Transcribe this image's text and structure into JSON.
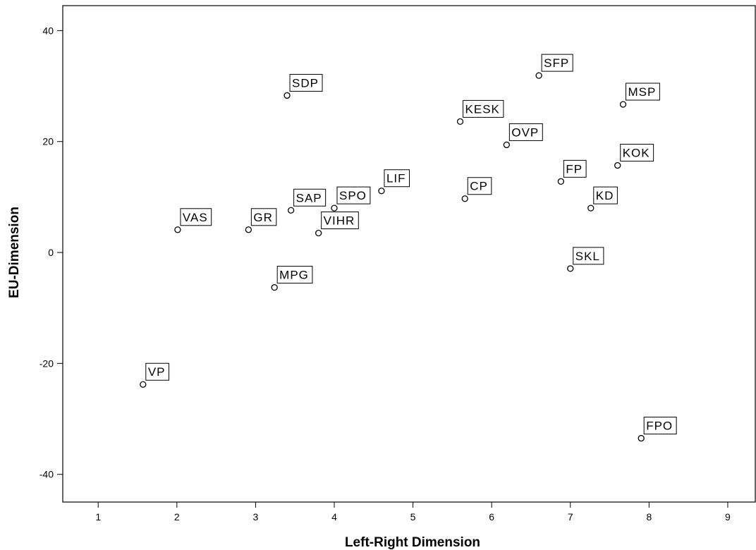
{
  "chart_data": {
    "type": "scatter",
    "title": "",
    "xlabel": "Left-Right Dimension",
    "ylabel": "EU-Dimension",
    "xlim": [
      0.55,
      9.35
    ],
    "ylim": [
      -45,
      44.5
    ],
    "xticks": [
      1,
      2,
      3,
      4,
      5,
      6,
      7,
      8,
      9
    ],
    "yticks": [
      -40,
      -20,
      0,
      20,
      40
    ],
    "grid": false,
    "points": [
      {
        "label": "VP",
        "x": 1.57,
        "y": -23.8
      },
      {
        "label": "VAS",
        "x": 2.01,
        "y": 4.1
      },
      {
        "label": "GR",
        "x": 2.91,
        "y": 4.1
      },
      {
        "label": "SDP",
        "x": 3.4,
        "y": 28.3
      },
      {
        "label": "MPG",
        "x": 3.24,
        "y": -6.3
      },
      {
        "label": "SAP",
        "x": 3.45,
        "y": 7.6
      },
      {
        "label": "VIHR",
        "x": 3.8,
        "y": 3.5
      },
      {
        "label": "SPO",
        "x": 4.0,
        "y": 8.0
      },
      {
        "label": "LIF",
        "x": 4.6,
        "y": 11.1
      },
      {
        "label": "KESK",
        "x": 5.6,
        "y": 23.6
      },
      {
        "label": "CP",
        "x": 5.66,
        "y": 9.7
      },
      {
        "label": "OVP",
        "x": 6.19,
        "y": 19.4
      },
      {
        "label": "SFP",
        "x": 6.6,
        "y": 31.9
      },
      {
        "label": "FP",
        "x": 6.88,
        "y": 12.8
      },
      {
        "label": "SKL",
        "x": 7.0,
        "y": -2.9
      },
      {
        "label": "KD",
        "x": 7.26,
        "y": 8.0
      },
      {
        "label": "KOK",
        "x": 7.6,
        "y": 15.7
      },
      {
        "label": "MSP",
        "x": 7.67,
        "y": 26.7
      },
      {
        "label": "FPO",
        "x": 7.9,
        "y": -33.5
      }
    ]
  }
}
